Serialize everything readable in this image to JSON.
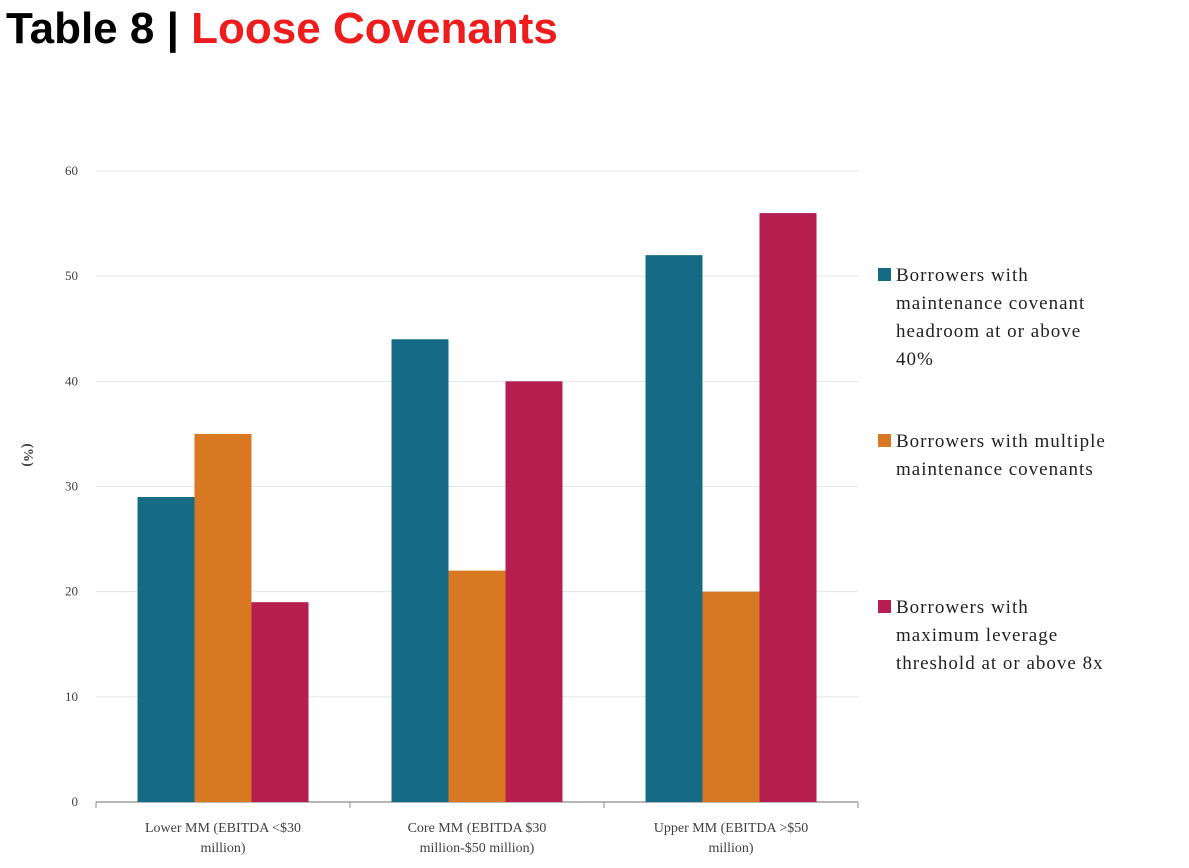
{
  "header": {
    "prefix": "Table 8",
    "separator": "|",
    "title": "Loose Covenants"
  },
  "colors": {
    "title_accent": "#ee1c1c",
    "series_1": "#156b85",
    "series_2": "#d97822",
    "series_3": "#b51e4f",
    "gridline": "#e4e4e4",
    "axis": "#8c8c8c"
  },
  "chart_data": {
    "type": "bar",
    "title": "",
    "xlabel": "",
    "ylabel": "(%)",
    "ylim": [
      0,
      60
    ],
    "yticks": [
      0,
      10,
      20,
      30,
      40,
      50,
      60
    ],
    "grid": true,
    "legend_position": "right",
    "categories": [
      [
        "Lower MM (EBITDA <$30",
        "million)"
      ],
      [
        "Core MM (EBITDA $30",
        "million-$50 million)"
      ],
      [
        "Upper MM (EBITDA >$50",
        "million)"
      ]
    ],
    "series": [
      {
        "name": "Borrowers with maintenance covenant headroom at or above 40%",
        "legend_lines": [
          "Borrowers with",
          "maintenance covenant",
          "headroom at or above",
          "40%"
        ],
        "color": "#156b85",
        "values": [
          29,
          44,
          52
        ]
      },
      {
        "name": "Borrowers with multiple maintenance covenants",
        "legend_lines": [
          "Borrowers with multiple",
          "maintenance covenants"
        ],
        "color": "#d97822",
        "values": [
          35,
          22,
          20
        ]
      },
      {
        "name": "Borrowers with maximum leverage threshold at or above 8x",
        "legend_lines": [
          "Borrowers with",
          "maximum leverage",
          "threshold at or above 8x"
        ],
        "color": "#b51e4f",
        "values": [
          19,
          40,
          56
        ]
      }
    ]
  }
}
